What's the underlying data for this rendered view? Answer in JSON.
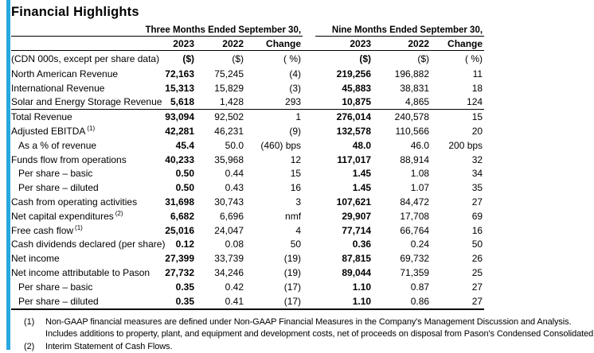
{
  "title": "Financial Highlights",
  "accent_color": "#29a8e0",
  "table": {
    "group_headers": [
      "Three Months Ended September 30,",
      "Nine Months Ended September 30,"
    ],
    "column_headers": [
      "2023",
      "2022",
      "Change",
      "2023",
      "2022",
      "Change"
    ],
    "unit_row": {
      "label": "(CDN 000s, except per share data)",
      "units": [
        "($)",
        "($)",
        "( %)",
        "($)",
        "($)",
        "( %)"
      ]
    },
    "rows": [
      {
        "label": "North American Revenue",
        "sup": "",
        "indent": false,
        "rule_below": false,
        "values": [
          "72,163",
          "75,245",
          "(4)",
          "219,256",
          "196,882",
          "11"
        ]
      },
      {
        "label": "International Revenue",
        "sup": "",
        "indent": false,
        "rule_below": false,
        "values": [
          "15,313",
          "15,829",
          "(3)",
          "45,883",
          "38,831",
          "18"
        ]
      },
      {
        "label": "Solar and Energy Storage Revenue",
        "sup": "",
        "indent": false,
        "rule_below": true,
        "values": [
          "5,618",
          "1,428",
          "293",
          "10,875",
          "4,865",
          "124"
        ]
      },
      {
        "label": "Total Revenue",
        "sup": "",
        "indent": false,
        "rule_below": false,
        "values": [
          "93,094",
          "92,502",
          "1",
          "276,014",
          "240,578",
          "15"
        ]
      },
      {
        "label": "Adjusted EBITDA",
        "sup": "(1)",
        "indent": false,
        "rule_below": false,
        "values": [
          "42,281",
          "46,231",
          "(9)",
          "132,578",
          "110,566",
          "20"
        ]
      },
      {
        "label": "As a % of revenue",
        "sup": "",
        "indent": true,
        "rule_below": false,
        "values": [
          "45.4",
          "50.0",
          "(460) bps",
          "48.0",
          "46.0",
          "200 bps"
        ]
      },
      {
        "label": "Funds flow from operations",
        "sup": "",
        "indent": false,
        "rule_below": false,
        "values": [
          "40,233",
          "35,968",
          "12",
          "117,017",
          "88,914",
          "32"
        ]
      },
      {
        "label": "Per share – basic",
        "sup": "",
        "indent": true,
        "rule_below": false,
        "values": [
          "0.50",
          "0.44",
          "15",
          "1.45",
          "1.08",
          "34"
        ]
      },
      {
        "label": "Per share – diluted",
        "sup": "",
        "indent": true,
        "rule_below": false,
        "values": [
          "0.50",
          "0.43",
          "16",
          "1.45",
          "1.07",
          "35"
        ]
      },
      {
        "label": "Cash from operating activities",
        "sup": "",
        "indent": false,
        "rule_below": false,
        "values": [
          "31,698",
          "30,743",
          "3",
          "107,621",
          "84,472",
          "27"
        ]
      },
      {
        "label": "Net capital expenditures",
        "sup": "(2)",
        "indent": false,
        "rule_below": false,
        "values": [
          "6,682",
          "6,696",
          "nmf",
          "29,907",
          "17,708",
          "69"
        ]
      },
      {
        "label": "Free cash flow",
        "sup": "(1)",
        "indent": false,
        "rule_below": false,
        "values": [
          "25,016",
          "24,047",
          "4",
          "77,714",
          "66,764",
          "16"
        ]
      },
      {
        "label": "Cash dividends declared (per share)",
        "sup": "",
        "indent": false,
        "rule_below": false,
        "values": [
          "0.12",
          "0.08",
          "50",
          "0.36",
          "0.24",
          "50"
        ]
      },
      {
        "label": "Net income",
        "sup": "",
        "indent": false,
        "rule_below": false,
        "values": [
          "27,399",
          "33,739",
          "(19)",
          "87,815",
          "69,732",
          "26"
        ]
      },
      {
        "label": "Net income attributable to Pason",
        "sup": "",
        "indent": false,
        "rule_below": false,
        "values": [
          "27,732",
          "34,246",
          "(19)",
          "89,044",
          "71,359",
          "25"
        ]
      },
      {
        "label": "Per share – basic",
        "sup": "",
        "indent": true,
        "rule_below": false,
        "values": [
          "0.35",
          "0.42",
          "(17)",
          "1.10",
          "0.87",
          "27"
        ]
      },
      {
        "label": "Per share – diluted",
        "sup": "",
        "indent": true,
        "rule_below": false,
        "values": [
          "0.35",
          "0.41",
          "(17)",
          "1.10",
          "0.86",
          "27"
        ]
      }
    ]
  },
  "footnotes": [
    {
      "marker": "(1)",
      "text": "Non-GAAP financial measures are defined under Non-GAAP Financial Measures in the Company's Management Discussion and Analysis."
    },
    {
      "marker": "",
      "text": "Includes additions to property, plant, and equipment and development costs, net of proceeds on disposal from Pason's Condensed Consolidated"
    },
    {
      "marker": "(2)",
      "text": "Interim Statement of Cash Flows."
    }
  ]
}
